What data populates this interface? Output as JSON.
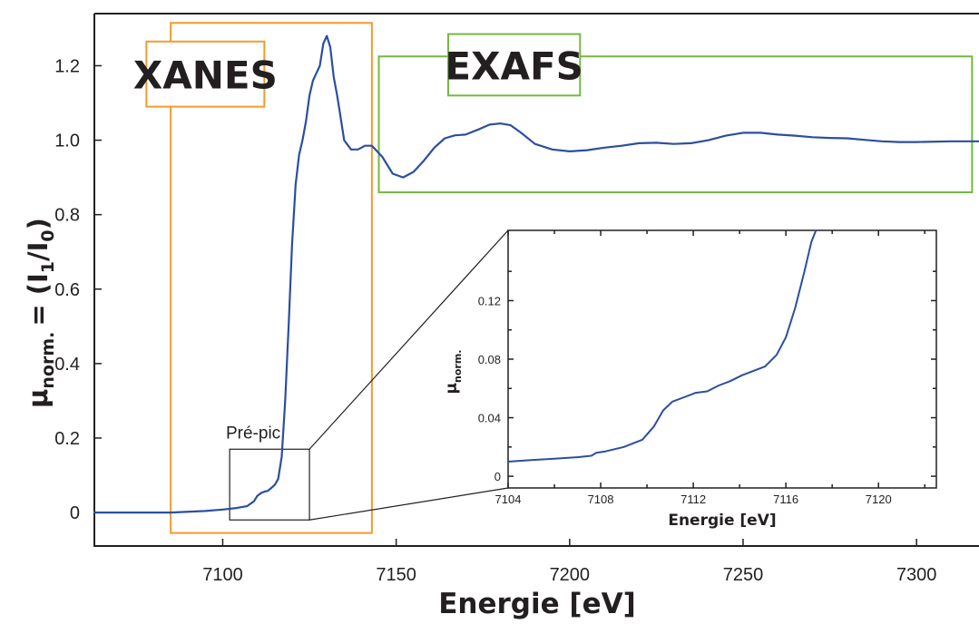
{
  "chart_data": [
    {
      "type": "line",
      "xlabel": "Energie [eV]",
      "ylabel_main": "μ",
      "ylabel_sub": "norm.",
      "ylabel_eq": "= (I",
      "ylabel_sub1": "1",
      "ylabel_slash": "/I",
      "ylabel_sub0": "0",
      "ylabel_close": ")",
      "xlim": [
        7063,
        7318
      ],
      "ylim": [
        -0.09,
        1.34
      ],
      "xticks": [
        7100,
        7150,
        7200,
        7250,
        7300
      ],
      "xtick_labels": [
        "7100",
        "7150",
        "7200",
        "7250",
        "7300"
      ],
      "yticks": [
        0,
        0.2,
        0.4,
        0.6,
        0.8,
        1.0,
        1.2
      ],
      "ytick_labels": [
        "0",
        "0.2",
        "0.4",
        "0.6",
        "0.8",
        "1.0",
        "1.2"
      ],
      "series": [
        {
          "color": "#2b4ea2",
          "x": [
            7063,
            7075,
            7085,
            7095,
            7100,
            7104,
            7107,
            7109,
            7110,
            7111,
            7112,
            7113,
            7114,
            7115,
            7116,
            7117,
            7118,
            7119,
            7120,
            7121,
            7122,
            7123,
            7124,
            7125,
            7126,
            7127,
            7128,
            7129,
            7130,
            7131,
            7132,
            7133,
            7134,
            7135,
            7137,
            7139,
            7141,
            7143,
            7146,
            7149,
            7152,
            7155,
            7158,
            7161,
            7164,
            7167,
            7170,
            7174,
            7177,
            7180,
            7183,
            7186,
            7190,
            7195,
            7200,
            7205,
            7210,
            7215,
            7220,
            7225,
            7230,
            7235,
            7240,
            7245,
            7250,
            7255,
            7260,
            7265,
            7270,
            7275,
            7280,
            7285,
            7290,
            7295,
            7300,
            7310,
            7318
          ],
          "y": [
            0.0,
            0.0,
            0.0,
            0.004,
            0.008,
            0.012,
            0.017,
            0.03,
            0.045,
            0.052,
            0.056,
            0.058,
            0.066,
            0.074,
            0.09,
            0.15,
            0.3,
            0.5,
            0.72,
            0.88,
            0.96,
            1.0,
            1.05,
            1.12,
            1.16,
            1.18,
            1.2,
            1.26,
            1.28,
            1.25,
            1.17,
            1.12,
            1.06,
            1.0,
            0.975,
            0.975,
            0.985,
            0.985,
            0.955,
            0.91,
            0.9,
            0.915,
            0.945,
            0.98,
            1.005,
            1.013,
            1.015,
            1.03,
            1.042,
            1.045,
            1.04,
            1.02,
            0.99,
            0.975,
            0.97,
            0.973,
            0.98,
            0.985,
            0.992,
            0.993,
            0.99,
            0.992,
            1.0,
            1.012,
            1.02,
            1.02,
            1.015,
            1.012,
            1.008,
            1.006,
            1.005,
            1.001,
            0.997,
            0.995,
            0.995,
            0.997,
            0.997
          ]
        }
      ],
      "annotations": [
        "XANES",
        "EXAFS",
        "Pré-pic"
      ],
      "region_colors": {
        "xanes": "#f39a2e",
        "exafs": "#76b843"
      },
      "regions": {
        "xanes": {
          "x": [
            7085,
            7143
          ],
          "y": [
            -0.055,
            1.315
          ]
        },
        "exafs": {
          "x": [
            7145,
            7316
          ],
          "y": [
            0.86,
            1.225
          ]
        },
        "xanes_label": {
          "x": [
            7078,
            7112
          ],
          "y": [
            1.09,
            1.265
          ]
        },
        "exafs_label": {
          "x": [
            7165,
            7203
          ],
          "y": [
            1.12,
            1.285
          ]
        },
        "prepeak": {
          "x": [
            7102,
            7125
          ],
          "y": [
            -0.02,
            0.17
          ]
        }
      },
      "grid": false
    },
    {
      "type": "line",
      "xlabel": "Energie [eV]",
      "ylabel_main": "μ",
      "ylabel_sub": "norm.",
      "xlim": [
        7104,
        7122.5
      ],
      "ylim": [
        -0.008,
        0.168
      ],
      "xticks": [
        7104,
        7108,
        7112,
        7116,
        7120
      ],
      "xtick_labels": [
        "7104",
        "7108",
        "7112",
        "7116",
        "7120"
      ],
      "yticks": [
        0,
        0.04,
        0.08,
        0.12
      ],
      "ytick_labels": [
        "0",
        "0.04",
        "0.08",
        "0.12"
      ],
      "series": [
        {
          "color": "#2b4ea2",
          "x": [
            7104,
            7105,
            7106,
            7107,
            7107.6,
            7107.8,
            7108.2,
            7109,
            7109.8,
            7110.3,
            7110.7,
            7111.1,
            7111.6,
            7112.1,
            7112.6,
            7113.1,
            7113.6,
            7114.1,
            7114.6,
            7115.1,
            7115.6,
            7116.0,
            7116.4,
            7116.8,
            7117.1,
            7117.3
          ],
          "y": [
            0.01,
            0.011,
            0.012,
            0.013,
            0.014,
            0.016,
            0.017,
            0.02,
            0.025,
            0.034,
            0.045,
            0.051,
            0.054,
            0.057,
            0.058,
            0.062,
            0.065,
            0.069,
            0.072,
            0.075,
            0.083,
            0.095,
            0.115,
            0.14,
            0.16,
            0.17
          ]
        }
      ],
      "grid": false
    }
  ]
}
